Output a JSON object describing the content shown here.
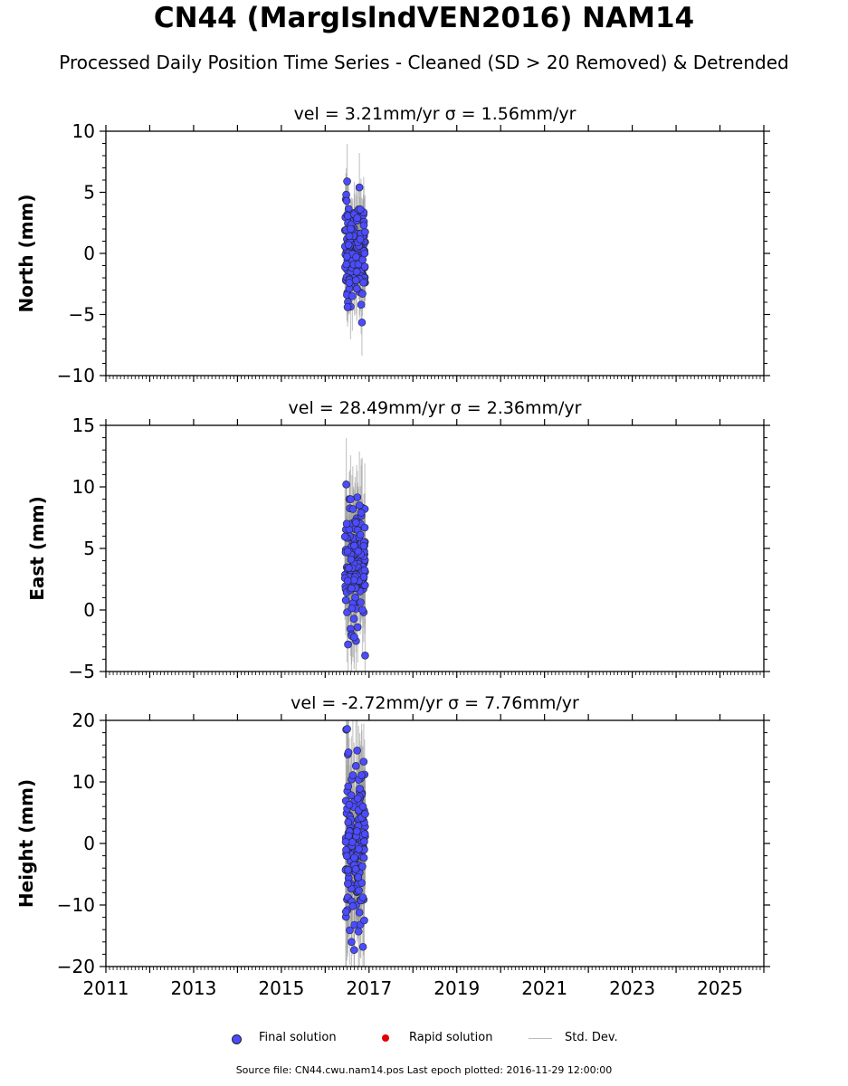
{
  "title": "CN44 (MargIslndVEN2016) NAM14",
  "subtitle": "Processed Daily Position Time Series - Cleaned (SD > 20 Removed) & Detrended",
  "legend": {
    "final": "Final solution",
    "rapid": "Rapid solution",
    "std": "Std. Dev."
  },
  "footer": "Source file: CN44.cwu.nam14.pos  Last epoch plotted: 2016-11-29 12:00:00",
  "colors": {
    "final": "#4b4bff",
    "rapid": "#e00000",
    "std": "#bcbcbc"
  },
  "chart_data": [
    {
      "type": "scatter",
      "title": "vel = 3.21mm/yr   σ = 1.56mm/yr",
      "ylabel": "North (mm)",
      "xlim": [
        2011,
        2026
      ],
      "ylim": [
        -10,
        10
      ],
      "yticks": [
        -10,
        -5,
        0,
        5,
        10
      ],
      "xticks": [
        2011,
        2013,
        2015,
        2017,
        2019,
        2021,
        2023,
        2025
      ],
      "x_range": [
        2016.45,
        2016.91
      ],
      "y_center": 0.3,
      "y_spread": 1.7,
      "err_mean": 2.2,
      "series": [
        {
          "x": [
            2016.48,
            2016.49,
            2016.51,
            2016.55,
            2016.58,
            2016.62,
            2016.66,
            2016.7,
            2016.73,
            2016.76,
            2016.78,
            2016.8,
            2016.82,
            2016.85,
            2016.88,
            2016.9
          ],
          "y": [
            4.8,
            4.3,
            -4.4,
            -2.4,
            2.0,
            -3.5,
            3.2,
            -2.2,
            2.9,
            3.6,
            5.4,
            3.6,
            -4.2,
            -3.3,
            2.3,
            0.0
          ]
        }
      ]
    },
    {
      "type": "scatter",
      "title": "vel = 28.49mm/yr   σ = 2.36mm/yr",
      "ylabel": "East (mm)",
      "xlim": [
        2011,
        2026
      ],
      "ylim": [
        -5,
        15
      ],
      "yticks": [
        -5,
        0,
        5,
        10,
        15
      ],
      "xticks": [
        2011,
        2013,
        2015,
        2017,
        2019,
        2021,
        2023,
        2025
      ],
      "x_range": [
        2016.45,
        2016.91
      ],
      "y_center": 3.8,
      "y_spread": 2.1,
      "err_mean": 3.2,
      "series": [
        {
          "x": [
            2016.48,
            2016.49,
            2016.52,
            2016.55,
            2016.58,
            2016.6,
            2016.63,
            2016.66,
            2016.7,
            2016.74,
            2016.78,
            2016.82,
            2016.85,
            2016.88,
            2016.91
          ],
          "y": [
            10.2,
            7.0,
            -2.8,
            9.0,
            9.0,
            -2.1,
            8.2,
            -2.2,
            7.1,
            -1.4,
            8.5,
            7.9,
            0.0,
            5.2,
            -3.7
          ]
        }
      ]
    },
    {
      "type": "scatter",
      "title": "vel = -2.72mm/yr   σ = 7.76mm/yr",
      "ylabel": "Height (mm)",
      "xlim": [
        2011,
        2026
      ],
      "ylim": [
        -20,
        20
      ],
      "yticks": [
        -20,
        -10,
        0,
        10,
        20
      ],
      "xticks": [
        2011,
        2013,
        2015,
        2017,
        2019,
        2021,
        2023,
        2025
      ],
      "x_range": [
        2016.45,
        2016.91
      ],
      "y_center": 0.0,
      "y_spread": 6.0,
      "err_mean": 8.0,
      "series": [
        {
          "x": [
            2016.48,
            2016.5,
            2016.53,
            2016.56,
            2016.6,
            2016.63,
            2016.66,
            2016.7,
            2016.73,
            2016.76,
            2016.8,
            2016.83,
            2016.86,
            2016.89,
            2016.91
          ],
          "y": [
            18.5,
            18.6,
            14.8,
            -14.1,
            -16.0,
            11.1,
            -17.3,
            12.6,
            15.1,
            -14.3,
            -13.2,
            11.1,
            6.0,
            -12.5,
            4.8
          ]
        }
      ]
    }
  ]
}
